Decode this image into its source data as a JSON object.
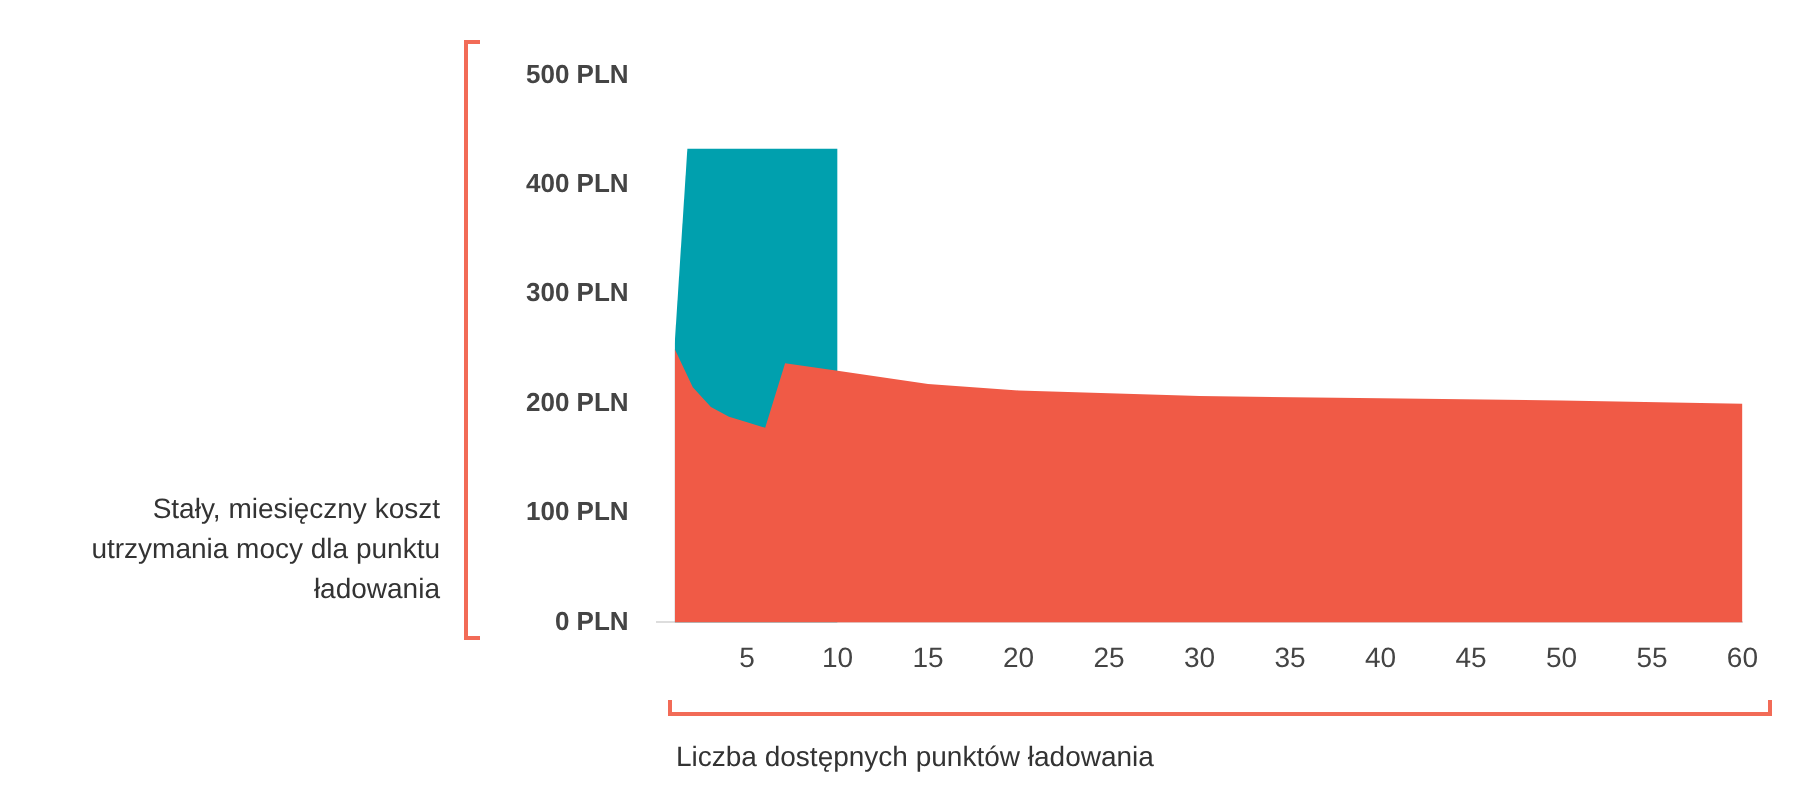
{
  "chart_data": {
    "type": "area",
    "xlabel": "Liczba dostępnych punktów ładowania",
    "ylabel": "Stały, miesięczny koszt utrzymania mocy dla punktu ładowania",
    "series": [
      {
        "color": "#00a0ae",
        "x": [
          1,
          1.7,
          10
        ],
        "values": [
          255,
          433,
          433
        ]
      },
      {
        "color": "#f05a46",
        "x": [
          1,
          2,
          3,
          4,
          5,
          6,
          7.1,
          10,
          15,
          20,
          30,
          40,
          50,
          60
        ],
        "values": [
          250,
          215,
          197,
          188,
          183,
          178,
          237,
          230,
          218,
          212,
          207,
          205,
          203,
          200
        ]
      }
    ],
    "xlim": [
      0,
      60
    ],
    "xticks": [
      5,
      10,
      15,
      20,
      25,
      30,
      35,
      40,
      45,
      50,
      55,
      60
    ],
    "ylim": [
      0,
      500
    ],
    "yticks": [
      {
        "value": 0,
        "label": "0 PLN"
      },
      {
        "value": 100,
        "label": "100 PLN"
      },
      {
        "value": 200,
        "label": "200 PLN"
      },
      {
        "value": 300,
        "label": "300 PLN"
      },
      {
        "value": 400,
        "label": "400 PLN"
      },
      {
        "value": 500,
        "label": "500 PLN"
      }
    ],
    "grid": false,
    "legend": false
  }
}
